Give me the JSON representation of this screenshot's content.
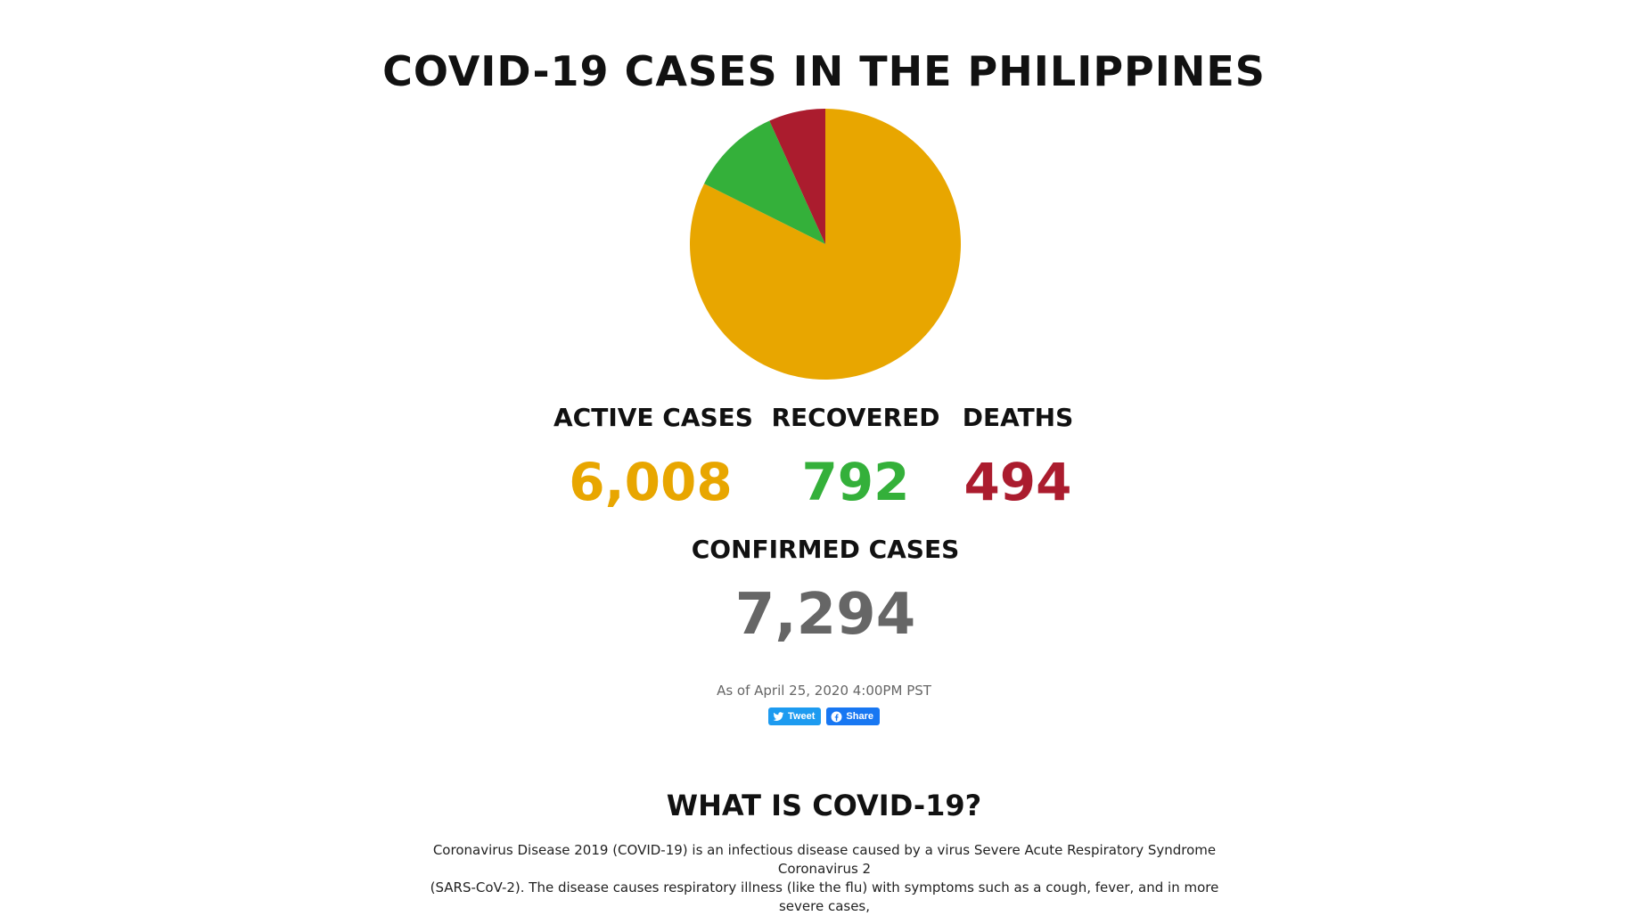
{
  "header": {
    "title": "COVID-19 CASES IN THE PHILIPPINES"
  },
  "chart_data": {
    "type": "pie",
    "categories": [
      "ACTIVE CASES",
      "RECOVERED",
      "DEATHS"
    ],
    "values": [
      6008,
      792,
      494
    ],
    "colors": [
      "#e8a600",
      "#34b03a",
      "#ab1c2e"
    ]
  },
  "stats": {
    "active": {
      "label": "ACTIVE CASES",
      "value": "6,008",
      "color": "#e8a600"
    },
    "recovered": {
      "label": "RECOVERED",
      "value": "792",
      "color": "#34b03a"
    },
    "deaths": {
      "label": "DEATHS",
      "value": "494",
      "color": "#ab1c2e"
    },
    "confirmed": {
      "label": "CONFIRMED CASES",
      "value": "7,294",
      "color": "#666666"
    }
  },
  "updated": {
    "text": "As of April 25, 2020 4:00PM PST"
  },
  "share": {
    "tweet_label": "Tweet",
    "tweet_icon": "twitter-bird-icon",
    "facebook_label": "Share",
    "facebook_icon": "facebook-icon"
  },
  "about": {
    "title": "WHAT IS COVID-19?",
    "line1": "Coronavirus Disease 2019 (COVID-19) is an infectious disease caused by a virus Severe Acute Respiratory Syndrome Coronavirus 2",
    "line2": "(SARS-CoV-2).  The disease causes respiratory illness (like the flu) with symptoms such as a cough, fever, and in more severe cases,"
  }
}
